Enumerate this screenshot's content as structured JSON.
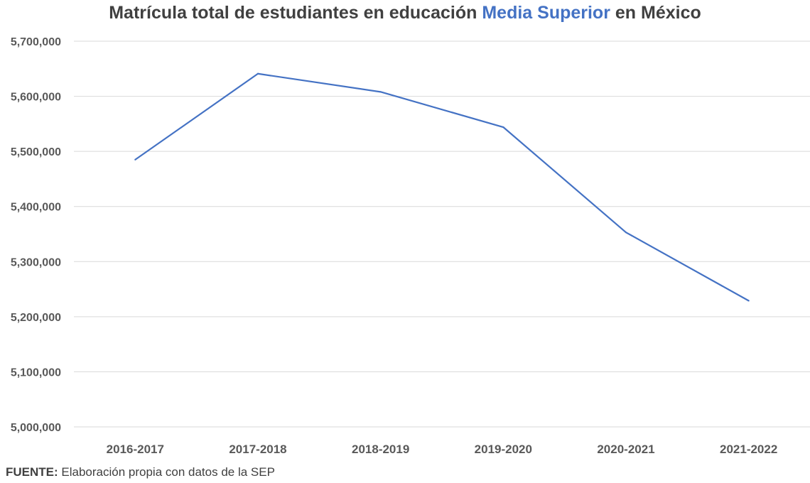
{
  "chart_data": {
    "type": "line",
    "title_parts": [
      "Matrícula total de estudiantes en educación ",
      "Media Superior",
      " en México"
    ],
    "title_highlight_color": "#4472C4",
    "categories": [
      "2016-2017",
      "2017-2018",
      "2018-2019",
      "2019-2020",
      "2020-2021",
      "2021-2022"
    ],
    "series": [
      {
        "values": [
          5485000,
          5641000,
          5608000,
          5544000,
          5353000,
          5229000
        ],
        "color": "#4472C4"
      }
    ],
    "ylim": [
      5000000,
      5700000
    ],
    "yticks": [
      5000000,
      5100000,
      5200000,
      5300000,
      5400000,
      5500000,
      5600000,
      5700000
    ],
    "ytick_labels": [
      "5,000,000",
      "5,100,000",
      "5,200,000",
      "5,300,000",
      "5,400,000",
      "5,500,000",
      "5,600,000",
      "5,700,000"
    ],
    "grid": true,
    "xlabel": "",
    "ylabel": ""
  },
  "footer": {
    "label": "FUENTE:",
    "text": " Elaboración propia con datos de la SEP"
  }
}
